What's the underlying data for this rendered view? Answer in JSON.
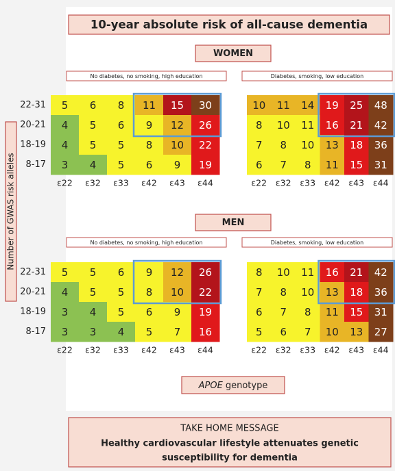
{
  "title": "10-year absolute risk of all-cause dementia",
  "y_axis_label": "Number of GWAS risk alleles",
  "x_axis_label": {
    "italic": "APOE",
    "rest": "genotype"
  },
  "rows": [
    "22-31",
    "20-21",
    "18-19",
    "8-17"
  ],
  "columns": [
    "ε22",
    "ε32",
    "ε33",
    "ε42",
    "ε43",
    "ε44"
  ],
  "panels": [
    {
      "group": "WOMEN",
      "subgroups": [
        {
          "label": "No diabetes, no smoking, high education",
          "values": [
            [
              5,
              6,
              8,
              11,
              15,
              30
            ],
            [
              4,
              5,
              6,
              9,
              12,
              26
            ],
            [
              4,
              5,
              5,
              8,
              10,
              22
            ],
            [
              3,
              4,
              5,
              6,
              9,
              19
            ]
          ],
          "colors": [
            [
              "#f7f32c",
              "#f7f32c",
              "#f7f32c",
              "#e8b526",
              "#b3141b",
              "#7d3f1a"
            ],
            [
              "#8cc152",
              "#f7f32c",
              "#f7f32c",
              "#f7f32c",
              "#e8b526",
              "#e0191b"
            ],
            [
              "#8cc152",
              "#f7f32c",
              "#f7f32c",
              "#f7f32c",
              "#e8b526",
              "#e0191b"
            ],
            [
              "#8cc152",
              "#8cc152",
              "#f7f32c",
              "#f7f32c",
              "#f7f32c",
              "#e0191b"
            ]
          ]
        },
        {
          "label": "Diabetes, smoking, low education",
          "values": [
            [
              10,
              11,
              14,
              19,
              25,
              48
            ],
            [
              8,
              10,
              11,
              16,
              21,
              42
            ],
            [
              7,
              8,
              10,
              13,
              18,
              36
            ],
            [
              6,
              7,
              8,
              11,
              15,
              31
            ]
          ],
          "colors": [
            [
              "#e8b526",
              "#e8b526",
              "#e8b526",
              "#e0191b",
              "#b3141b",
              "#7d3f1a"
            ],
            [
              "#f7f32c",
              "#f7f32c",
              "#f7f32c",
              "#e0191b",
              "#b3141b",
              "#7d3f1a"
            ],
            [
              "#f7f32c",
              "#f7f32c",
              "#f7f32c",
              "#e8b526",
              "#e0191b",
              "#7d3f1a"
            ],
            [
              "#f7f32c",
              "#f7f32c",
              "#f7f32c",
              "#e8b526",
              "#e0191b",
              "#7d3f1a"
            ]
          ]
        }
      ]
    },
    {
      "group": "MEN",
      "subgroups": [
        {
          "label": "No diabetes, no smoking, high education",
          "values": [
            [
              5,
              5,
              6,
              9,
              12,
              26
            ],
            [
              4,
              5,
              5,
              8,
              10,
              22
            ],
            [
              3,
              4,
              5,
              6,
              9,
              19
            ],
            [
              3,
              3,
              4,
              5,
              7,
              16
            ]
          ],
          "colors": [
            [
              "#f7f32c",
              "#f7f32c",
              "#f7f32c",
              "#f7f32c",
              "#e8b526",
              "#b3141b"
            ],
            [
              "#8cc152",
              "#f7f32c",
              "#f7f32c",
              "#f7f32c",
              "#e8b526",
              "#b3141b"
            ],
            [
              "#8cc152",
              "#8cc152",
              "#f7f32c",
              "#f7f32c",
              "#f7f32c",
              "#e0191b"
            ],
            [
              "#8cc152",
              "#8cc152",
              "#8cc152",
              "#f7f32c",
              "#f7f32c",
              "#e0191b"
            ]
          ]
        },
        {
          "label": "Diabetes, smoking, low education",
          "values": [
            [
              8,
              10,
              11,
              16,
              21,
              42
            ],
            [
              7,
              8,
              10,
              13,
              18,
              36
            ],
            [
              6,
              7,
              8,
              11,
              15,
              31
            ],
            [
              5,
              6,
              7,
              10,
              13,
              27
            ]
          ],
          "colors": [
            [
              "#f7f32c",
              "#f7f32c",
              "#f7f32c",
              "#e0191b",
              "#b3141b",
              "#7d3f1a"
            ],
            [
              "#f7f32c",
              "#f7f32c",
              "#f7f32c",
              "#e8b526",
              "#e0191b",
              "#7d3f1a"
            ],
            [
              "#f7f32c",
              "#f7f32c",
              "#f7f32c",
              "#e8b526",
              "#e0191b",
              "#7d3f1a"
            ],
            [
              "#f7f32c",
              "#f7f32c",
              "#f7f32c",
              "#e8b526",
              "#e8b526",
              "#7d3f1a"
            ]
          ]
        }
      ]
    }
  ],
  "message": {
    "heading": "TAKE HOME MESSAGE",
    "lines": [
      "Healthy cardiovascular lifestyle attenuates genetic",
      "susceptibility for dementia"
    ]
  }
}
